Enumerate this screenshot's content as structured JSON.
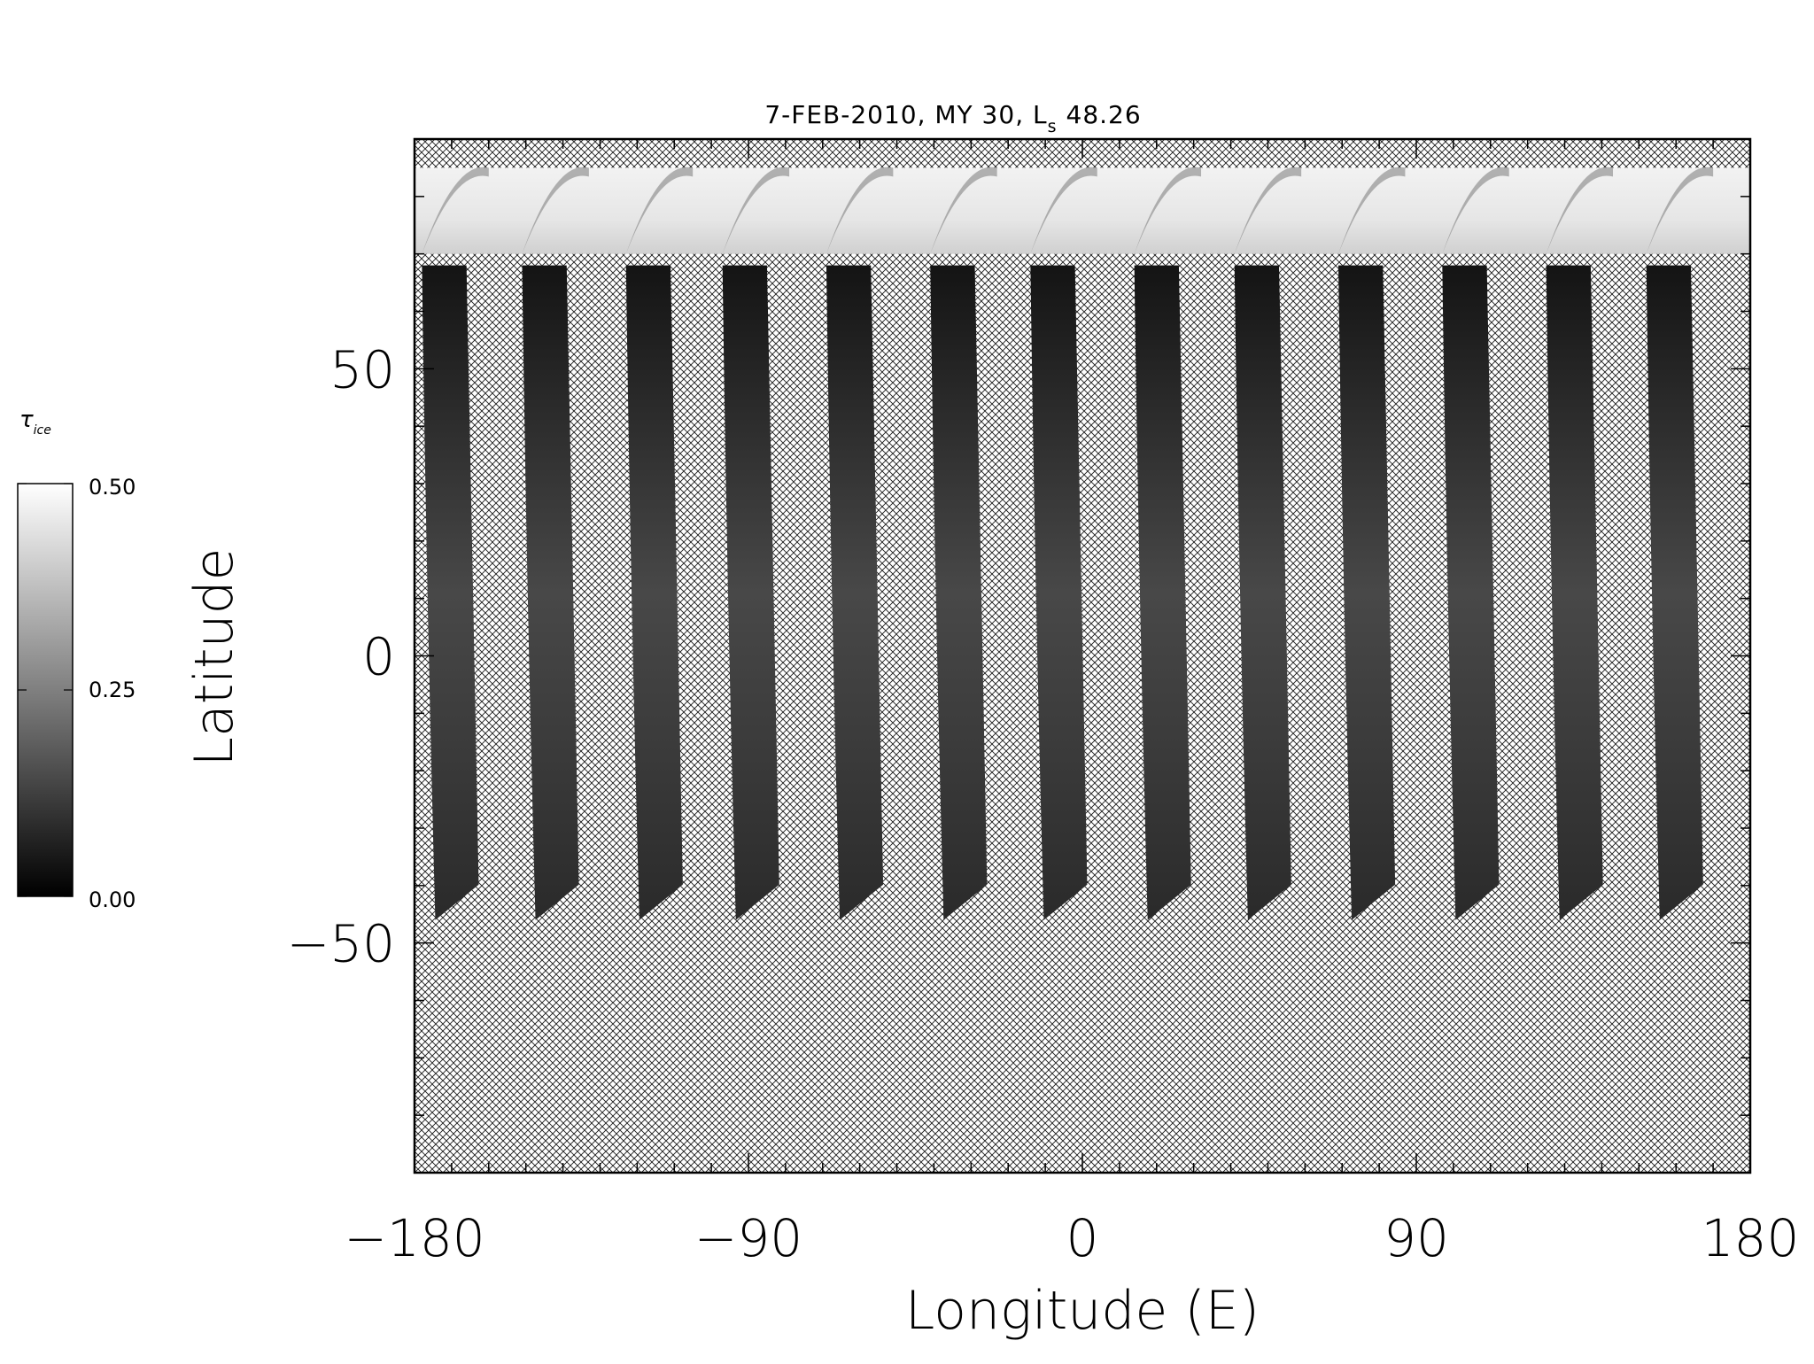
{
  "chart_data": {
    "type": "heatmap",
    "title": "7-FEB-2010, MY 30,  L",
    "title_sub": "s",
    "title_value": "48.26",
    "xlabel": "Longitude (E)",
    "ylabel": "Latitude",
    "xlim": [
      -180,
      180
    ],
    "ylim": [
      -90,
      90
    ],
    "x_ticks": [
      -180,
      -90,
      0,
      90,
      180
    ],
    "x_tick_labels": [
      "−180",
      "−90",
      "0",
      "90",
      "180"
    ],
    "y_ticks": [
      50,
      0,
      -50
    ],
    "y_tick_labels": [
      "50",
      "0",
      "−50"
    ],
    "x_minor_step": 10,
    "y_minor_step": 10,
    "no_data_pattern": "crosshatch",
    "north_cap_lat_range": [
      70,
      85
    ],
    "swaths": {
      "count": 13,
      "start_lons": [
        -178,
        -151,
        -123,
        -97,
        -69,
        -41,
        -14,
        14,
        41,
        69,
        97,
        125,
        152
      ],
      "lat_top": 68,
      "lat_bottom": -46,
      "width_deg": 12
    },
    "colorbar": {
      "label": "τ",
      "label_sub": "ice",
      "min": 0.0,
      "max": 0.5,
      "ticks": [
        0.5,
        0.25,
        0.0
      ],
      "tick_labels": [
        "0.50",
        "0.25",
        "0.00"
      ],
      "colormap": "grayscale",
      "color_min": "#000000",
      "color_max": "#ffffff"
    }
  }
}
